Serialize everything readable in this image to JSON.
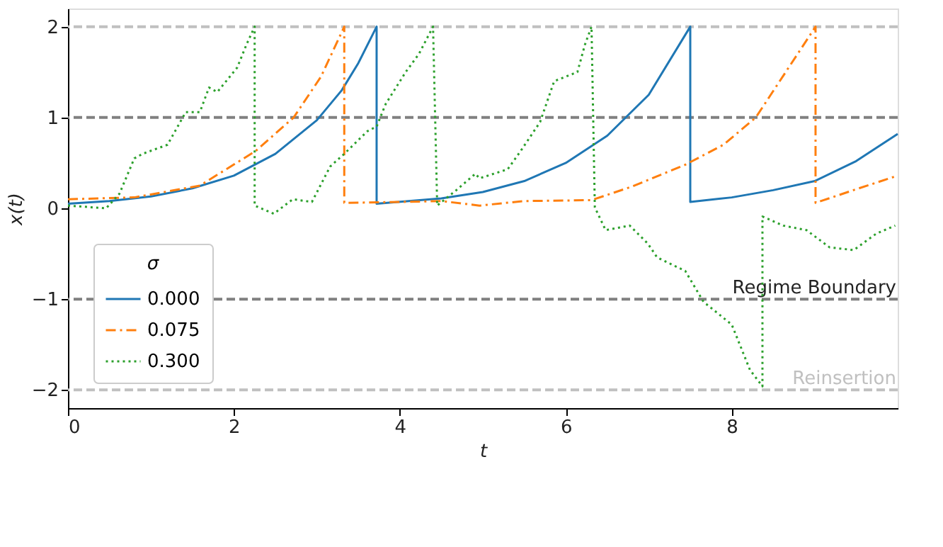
{
  "chart_data": {
    "type": "line",
    "xlabel": "t",
    "ylabel": "x(t)",
    "legend_title": "σ",
    "legend": "bottom left",
    "grid": false,
    "xlim": [
      0,
      10
    ],
    "ylim": [
      -2.2,
      2.2
    ],
    "xticks": [
      0,
      2,
      4,
      6,
      8
    ],
    "yticks": [
      -2,
      -1,
      0,
      1,
      2
    ],
    "ref_lines": [
      {
        "axis": "y",
        "value": 2,
        "label": null,
        "color": "#c0c0c0",
        "line_style": "dashed"
      },
      {
        "axis": "y",
        "value": 1,
        "label": null,
        "color": "#808080",
        "line_style": "dashed"
      },
      {
        "axis": "y",
        "value": -1,
        "label": "Regime Boundary",
        "color": "#808080",
        "line_style": "dashed"
      },
      {
        "axis": "y",
        "value": -2,
        "label": "Reinsertion",
        "color": "#c0c0c0",
        "line_style": "dashed"
      }
    ],
    "series": [
      {
        "name": "0.000",
        "color": "#1f77b4",
        "line_style": "solid",
        "x": [
          0,
          0.5,
          1,
          1.5,
          2,
          2.5,
          3,
          3.3,
          3.5,
          3.72,
          3.72,
          4.5,
          5,
          5.5,
          6,
          6.5,
          7,
          7.5,
          7.5,
          8,
          8.5,
          9,
          9.5,
          10
        ],
        "values": [
          0.05,
          0.08,
          0.13,
          0.22,
          0.36,
          0.6,
          0.97,
          1.3,
          1.6,
          2.0,
          0.05,
          0.11,
          0.18,
          0.3,
          0.5,
          0.8,
          1.25,
          2.0,
          0.07,
          0.12,
          0.2,
          0.3,
          0.52,
          0.82
        ]
      },
      {
        "name": "0.075",
        "color": "#ff7f0e",
        "line_style": "dashdot",
        "x": [
          0,
          0.8,
          1.59,
          2.26,
          2.72,
          3.05,
          3.33,
          3.33,
          4.0,
          4.5,
          4.96,
          5.5,
          6.31,
          6.8,
          7.44,
          7.9,
          8.29,
          9.01,
          9.01,
          9.5,
          10
        ],
        "values": [
          0.1,
          0.12,
          0.25,
          0.63,
          1.0,
          1.45,
          2.0,
          0.06,
          0.07,
          0.08,
          0.03,
          0.08,
          0.09,
          0.24,
          0.48,
          0.7,
          1.0,
          2.0,
          0.06,
          0.21,
          0.36
        ]
      },
      {
        "name": "0.300",
        "color": "#2ca02c",
        "line_style": "dotted",
        "x": [
          0,
          0.46,
          0.62,
          0.8,
          0.9,
          1.2,
          1.42,
          1.59,
          1.7,
          1.8,
          2.04,
          2.15,
          2.25,
          2.25,
          2.48,
          2.71,
          2.94,
          3.16,
          3.33,
          3.61,
          3.72,
          3.83,
          4.07,
          4.23,
          4.4,
          4.45,
          4.68,
          4.91,
          4.96,
          5.3,
          5.47,
          5.69,
          5.86,
          6.14,
          6.23,
          6.31,
          6.35,
          6.48,
          6.77,
          6.99,
          7.1,
          7.44,
          7.66,
          8.0,
          8.22,
          8.37,
          8.37,
          8.62,
          8.9,
          9.18,
          9.47,
          9.74,
          9.97
        ],
        "values": [
          0.03,
          0.0,
          0.16,
          0.55,
          0.6,
          0.7,
          1.06,
          1.06,
          1.33,
          1.28,
          1.55,
          1.8,
          2.0,
          0.03,
          -0.06,
          0.1,
          0.07,
          0.46,
          0.6,
          0.85,
          0.9,
          1.15,
          1.5,
          1.7,
          2.0,
          0.03,
          0.2,
          0.38,
          0.33,
          0.43,
          0.65,
          0.95,
          1.4,
          1.5,
          1.8,
          2.0,
          0.01,
          -0.24,
          -0.19,
          -0.39,
          -0.54,
          -0.69,
          -1.03,
          -1.28,
          -1.78,
          -1.96,
          -0.09,
          -0.19,
          -0.24,
          -0.43,
          -0.46,
          -0.28,
          -0.19
        ]
      }
    ]
  }
}
